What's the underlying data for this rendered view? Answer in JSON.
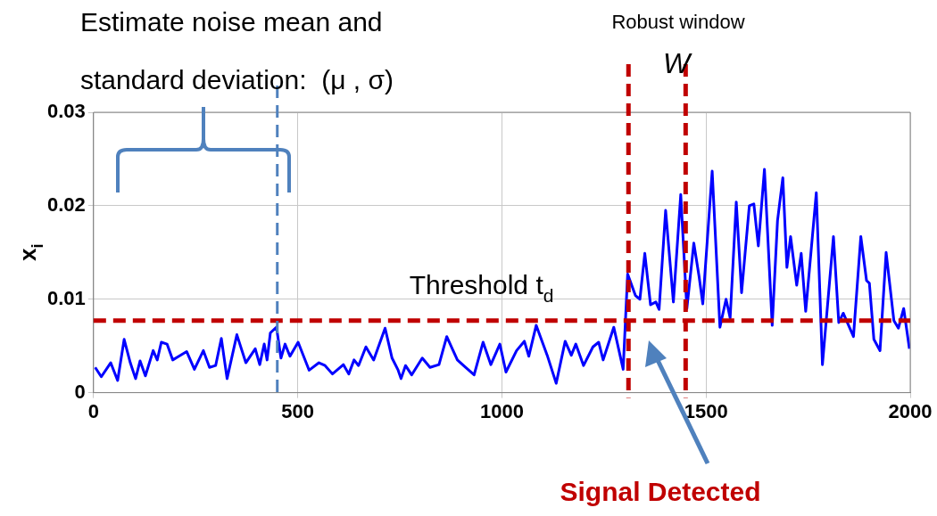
{
  "chart_data": {
    "type": "line",
    "ylabel": "x$_{i}$",
    "x": [
      4,
      19,
      42,
      59,
      75,
      90,
      103,
      114,
      127,
      146,
      156,
      166,
      180,
      194,
      209,
      228,
      247,
      269,
      284,
      299,
      313,
      327,
      351,
      373,
      396,
      407,
      418,
      425,
      433,
      448,
      459,
      469,
      481,
      501,
      528,
      552,
      567,
      585,
      612,
      625,
      638,
      649,
      667,
      686,
      714,
      731,
      746,
      753,
      764,
      779,
      805,
      824,
      846,
      865,
      891,
      906,
      932,
      954,
      973,
      995,
      1010,
      1036,
      1055,
      1066,
      1084,
      1111,
      1133,
      1155,
      1170,
      1181,
      1200,
      1223,
      1237,
      1248,
      1274,
      1297,
      1308,
      1327,
      1338,
      1350,
      1364,
      1377,
      1385,
      1401,
      1420,
      1438,
      1453,
      1470,
      1483,
      1492,
      1515,
      1534,
      1549,
      1559,
      1574,
      1587,
      1606,
      1617,
      1628,
      1643,
      1662,
      1675,
      1688,
      1698,
      1707,
      1722,
      1733,
      1744,
      1770,
      1785,
      1812,
      1825,
      1836,
      1861,
      1879,
      1893,
      1900,
      1911,
      1926,
      1941,
      1960,
      1971,
      1984,
      1998
    ],
    "series": [
      {
        "color": "#0000ff",
        "values": [
          0.0027,
          0.0017,
          0.0032,
          0.0013,
          0.0057,
          0.0032,
          0.0015,
          0.0034,
          0.0018,
          0.0045,
          0.0035,
          0.0054,
          0.0052,
          0.0035,
          0.0039,
          0.0044,
          0.0025,
          0.0045,
          0.0027,
          0.0029,
          0.0058,
          0.0015,
          0.0062,
          0.0032,
          0.0047,
          0.003,
          0.0052,
          0.0035,
          0.0064,
          0.007,
          0.0037,
          0.0052,
          0.0039,
          0.0054,
          0.0024,
          0.0032,
          0.0029,
          0.002,
          0.003,
          0.002,
          0.0035,
          0.0029,
          0.0049,
          0.0035,
          0.0069,
          0.0037,
          0.0024,
          0.0015,
          0.0029,
          0.0019,
          0.0037,
          0.0027,
          0.003,
          0.006,
          0.0035,
          0.0029,
          0.0019,
          0.0054,
          0.003,
          0.0052,
          0.0022,
          0.0045,
          0.0055,
          0.0039,
          0.0072,
          0.004,
          0.001,
          0.0055,
          0.004,
          0.0052,
          0.0029,
          0.0049,
          0.0054,
          0.0035,
          0.007,
          0.0025,
          0.0127,
          0.0104,
          0.01,
          0.0149,
          0.0094,
          0.0097,
          0.0089,
          0.0195,
          0.0097,
          0.0212,
          0.009,
          0.016,
          0.0124,
          0.0095,
          0.0237,
          0.007,
          0.01,
          0.008,
          0.0204,
          0.0107,
          0.02,
          0.0202,
          0.0157,
          0.0239,
          0.0072,
          0.0184,
          0.023,
          0.0134,
          0.0167,
          0.0115,
          0.0149,
          0.0087,
          0.0214,
          0.003,
          0.0167,
          0.0075,
          0.0085,
          0.006,
          0.0167,
          0.012,
          0.0117,
          0.0057,
          0.0045,
          0.015,
          0.0077,
          0.0069,
          0.009,
          0.0047
        ]
      }
    ],
    "xlim": [
      0,
      2000
    ],
    "xticks": [
      0,
      500,
      1000,
      1500,
      2000
    ],
    "ylim": [
      0,
      0.03
    ],
    "yticks": [
      0,
      0.01,
      0.02,
      0.03
    ],
    "grid": true,
    "legend": false,
    "marker": "none",
    "line_style": "solid",
    "ref_lines": [
      {
        "axis": "y",
        "value": 0.0077,
        "label": "Threshold t$_{d}$",
        "color": "#c00000",
        "line_style": "dashed"
      },
      {
        "axis": "x",
        "value": 450,
        "label": null,
        "color": "#4f81bd",
        "line_style": "dashed"
      },
      {
        "axis": "x",
        "value": 1310,
        "label": null,
        "color": "#c00000",
        "line_style": "dashed"
      },
      {
        "axis": "x",
        "value": 1450,
        "label": null,
        "color": "#c00000",
        "line_style": "dashed"
      }
    ],
    "annotations": [
      "Estimate noise mean and",
      "standard deviation:  (μ , σ)",
      "Robust window",
      "W",
      "Signal Detected"
    ]
  }
}
